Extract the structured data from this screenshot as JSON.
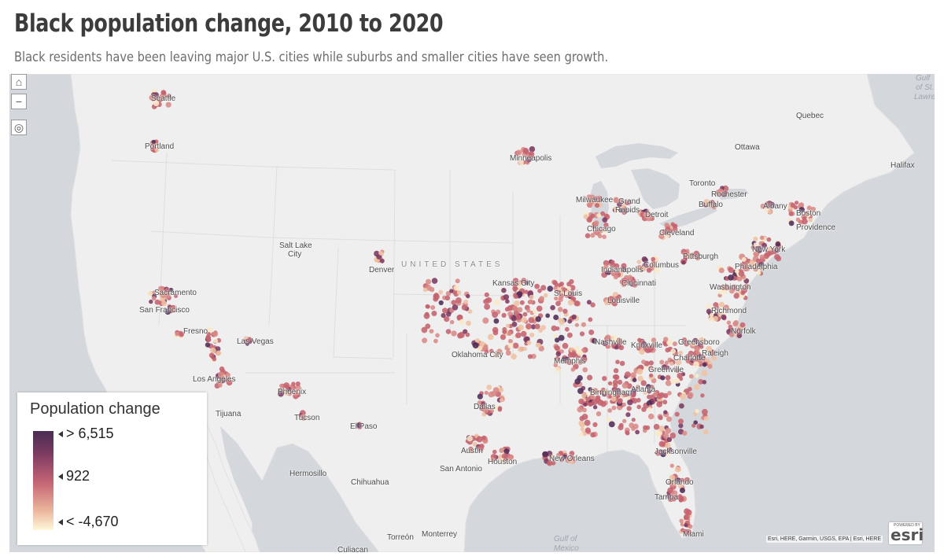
{
  "title": "Black population change, 2010 to 2020",
  "subtitle": "Black residents have been leaving major U.S. cities while suburbs and smaller cities have seen growth.",
  "map_controls": {
    "home": "⌂",
    "zoom_out": "−",
    "locate": "◎"
  },
  "legend": {
    "title": "Population change",
    "high": "> 6,515",
    "mid": "922",
    "low": "< -4,670",
    "ramp_colors": [
      "#4a2d54",
      "#7a3a60",
      "#c56575",
      "#eab59b",
      "#fff8da"
    ]
  },
  "colors": {
    "land": "#efefef",
    "water": "#d4d8dc",
    "point_palette": [
      "#4e2b56",
      "#7b3a62",
      "#a5485f",
      "#c5636f",
      "#d98a86",
      "#efc2a3",
      "#fbe9c8"
    ]
  },
  "place_labels": {
    "seattle": "Seattle",
    "portland": "Portland",
    "sacramento": "Sacramento",
    "san_francisco": "San Francisco",
    "fresno": "Fresno",
    "los_angeles": "Los Angeles",
    "tijuana": "Tijuana",
    "las_vegas": "Las Vegas",
    "phoenix": "Phoenix",
    "tucson": "Tucson",
    "salt_lake_city_1": "Salt Lake",
    "salt_lake_city_2": "City",
    "denver": "Denver",
    "el_paso": "El Paso",
    "hermosillo": "Hermosillo",
    "chihuahua": "Chihuahua",
    "torreon": "Torreón",
    "monterrey": "Monterrey",
    "culiacan": "Culiacan",
    "united_states": "UNITED STATES",
    "minneapolis": "Minneapolis",
    "kansas_city": "Kansas City",
    "oklahoma_city": "Oklahoma City",
    "dallas": "Dallas",
    "austin": "Austin",
    "san_antonio": "San Antonio",
    "houston": "Houston",
    "new_orleans": "New Orleans",
    "st_louis": "St Louis",
    "memphis": "Memphis",
    "nashville": "Nashville",
    "birmingham": "Birmingham",
    "atlanta": "Atlanta",
    "jacksonville": "Jacksonville",
    "orlando": "Orlando",
    "tampa": "Tampa",
    "miami": "Miami",
    "chicago": "Chicago",
    "milwaukee": "Milwaukee",
    "grand_rapids_1": "Grand",
    "grand_rapids_2": "Rapids",
    "detroit": "Detroit",
    "indianapolis": "Indianapolis",
    "cincinnati": "Cincinnati",
    "louisville": "Louisville",
    "columbus": "Columbus",
    "cleveland": "Cleveland",
    "pittsburgh": "Pittsburgh",
    "knoxville": "Knoxville",
    "greensboro": "Greensboro",
    "charlotte": "Charlotte",
    "greenville": "Greenville",
    "raleigh": "Raleigh",
    "richmond": "Richmond",
    "norfolk": "Norfolk",
    "washington": "Washington",
    "philadelphia": "Philadelphia",
    "new_york": "New York",
    "boston": "Boston",
    "providence": "Providence",
    "albany": "Albany",
    "rochester": "Rochester",
    "buffalo": "Buffalo",
    "toronto": "Toronto",
    "ottawa": "Ottawa",
    "quebec": "Quebec",
    "halifax": "Halifax",
    "gulf_of_mexico_1": "Gulf of",
    "gulf_of_mexico_2": "Mexico",
    "gulf_stlawrence_1": "Gulf",
    "gulf_stlawrence_2": "of St.",
    "gulf_stlawrence_3": "Lawre..."
  },
  "attribution": "Esri, HERE, Garmin, USGS, EPA | Esri, HERE",
  "esri_logo": {
    "small": "POWERED BY",
    "word": "esri"
  }
}
